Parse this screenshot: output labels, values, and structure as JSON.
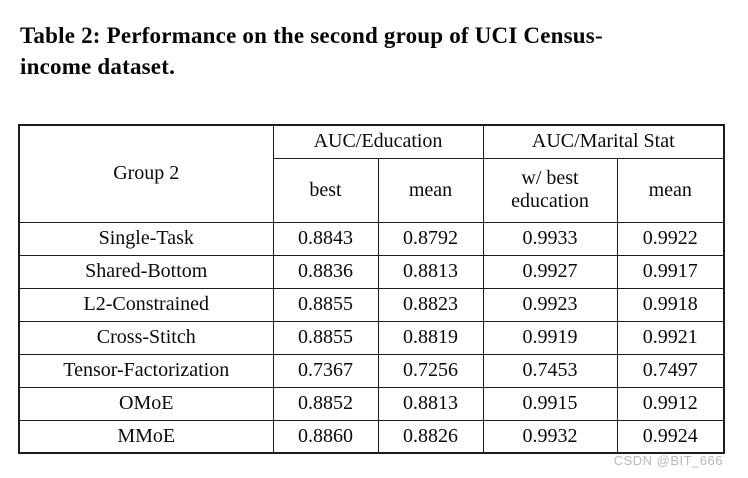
{
  "page": {
    "caption_line1": "Table 2: Performance on the second group of UCI Census-",
    "caption_line2": "income dataset.",
    "watermark": "CSDN @BIT_666"
  },
  "table": {
    "corner_header": "Group 2",
    "col_groups": [
      {
        "label": "AUC/Education",
        "sub": [
          "best",
          "mean"
        ]
      },
      {
        "label": "AUC/Marital Stat",
        "sub": [
          "w/ best education",
          "mean"
        ]
      }
    ],
    "rows": [
      {
        "label": "Single-Task",
        "values": [
          {
            "v": "0.8843",
            "bold": false
          },
          {
            "v": "0.8792",
            "bold": false
          },
          {
            "v": "0.9933",
            "bold": true
          },
          {
            "v": "0.9922",
            "bold": false
          }
        ]
      },
      {
        "label": "Shared-Bottom",
        "values": [
          {
            "v": "0.8836",
            "bold": false
          },
          {
            "v": "0.8813",
            "bold": false
          },
          {
            "v": "0.9927",
            "bold": false
          },
          {
            "v": "0.9917",
            "bold": false
          }
        ]
      },
      {
        "label": "L2-Constrained",
        "values": [
          {
            "v": "0.8855",
            "bold": false
          },
          {
            "v": "0.8823",
            "bold": false
          },
          {
            "v": "0.9923",
            "bold": false
          },
          {
            "v": "0.9918",
            "bold": false
          }
        ]
      },
      {
        "label": "Cross-Stitch",
        "values": [
          {
            "v": "0.8855",
            "bold": false
          },
          {
            "v": "0.8819",
            "bold": false
          },
          {
            "v": "0.9919",
            "bold": false
          },
          {
            "v": "0.9921",
            "bold": false
          }
        ]
      },
      {
        "label": "Tensor-Factorization",
        "values": [
          {
            "v": "0.7367",
            "bold": false
          },
          {
            "v": "0.7256",
            "bold": false
          },
          {
            "v": "0.7453",
            "bold": false
          },
          {
            "v": "0.7497",
            "bold": false
          }
        ]
      },
      {
        "label": "OMoE",
        "values": [
          {
            "v": "0.8852",
            "bold": false
          },
          {
            "v": "0.8813",
            "bold": false
          },
          {
            "v": "0.9915",
            "bold": false
          },
          {
            "v": "0.9912",
            "bold": false
          }
        ]
      },
      {
        "label": "MMoE",
        "values": [
          {
            "v": "0.8860",
            "bold": true
          },
          {
            "v": "0.8826",
            "bold": true
          },
          {
            "v": "0.9932",
            "bold": false
          },
          {
            "v": "0.9924",
            "bold": true
          }
        ]
      }
    ]
  }
}
